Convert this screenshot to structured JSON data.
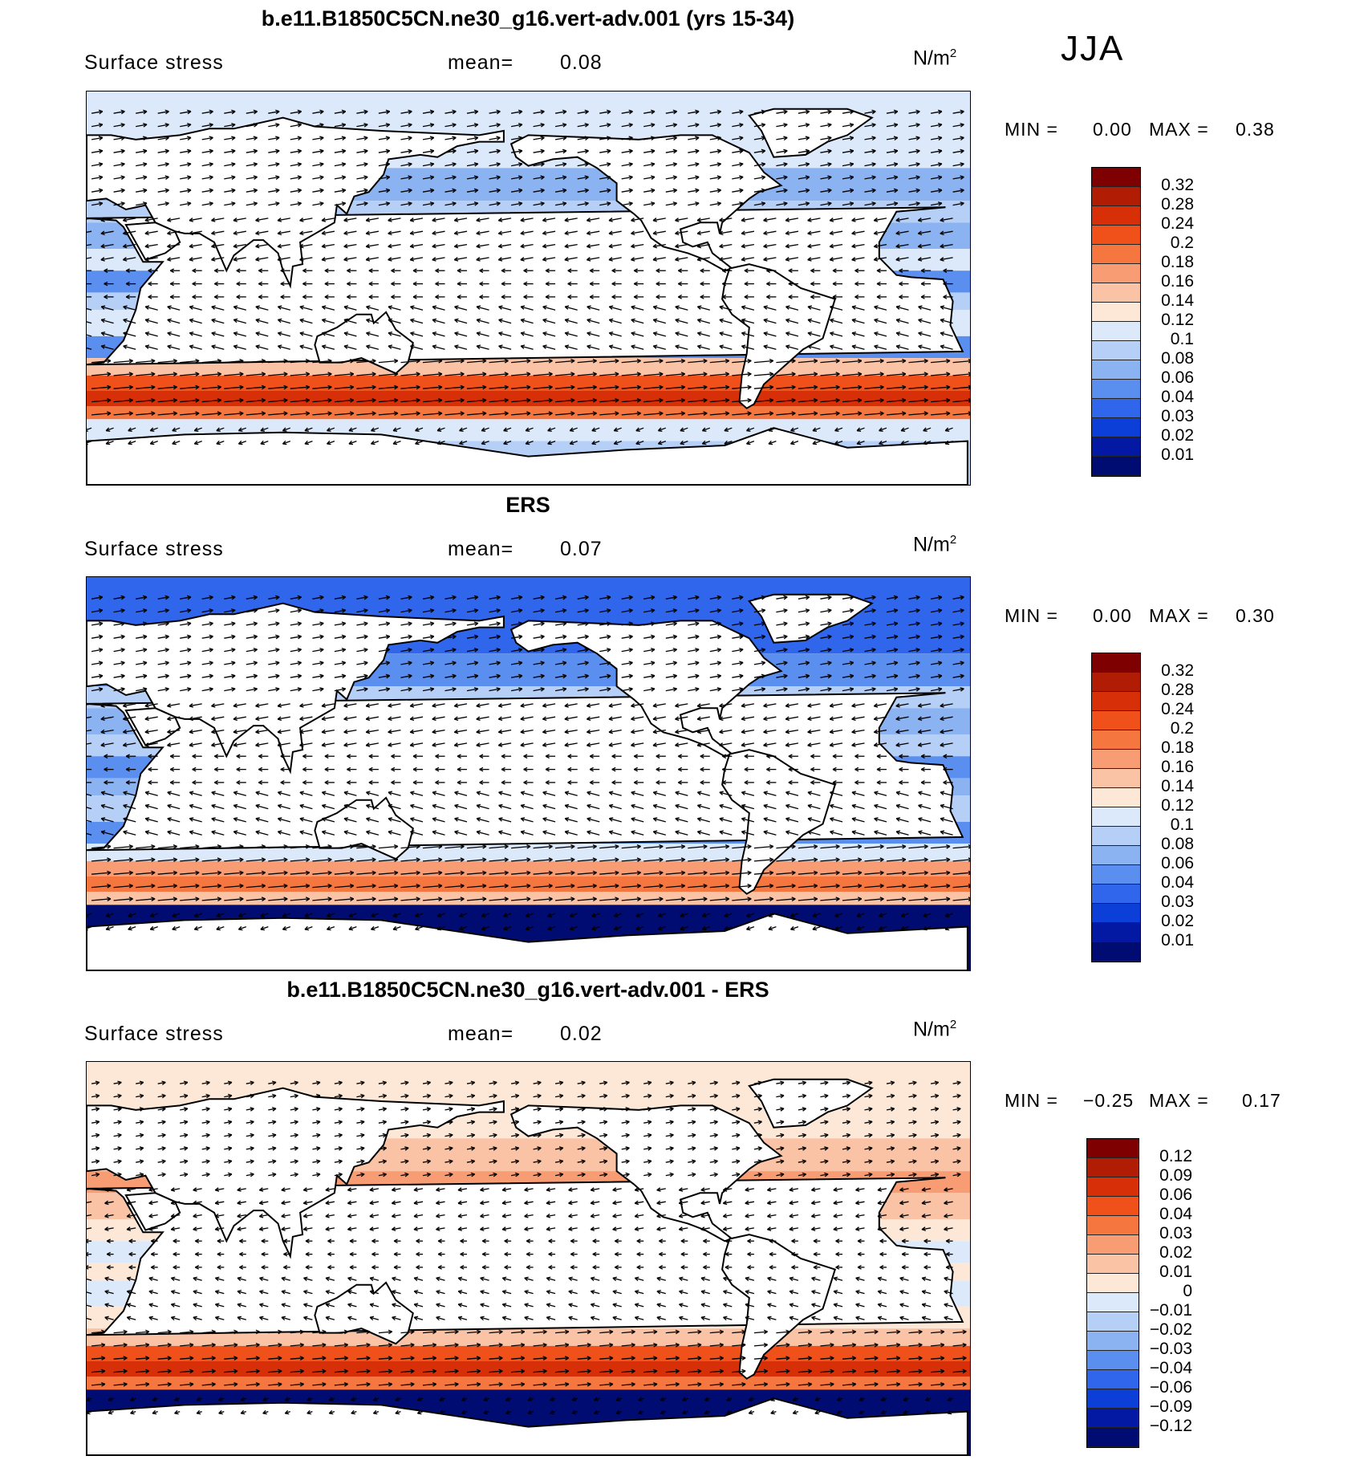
{
  "season": "JJA",
  "panels": [
    {
      "title": "b.e11.B1850C5CN.ne30_g16.vert-adv.001 (yrs 15-34)",
      "variable": "Surface stress",
      "mean_label": "mean=",
      "mean_value": "0.08",
      "units": "N/m",
      "units_exp": "2",
      "min_label": "MIN =",
      "min_value": "0.00",
      "max_label": "MAX =",
      "max_value": "0.38",
      "colorbar": [
        "0.32",
        "0.28",
        "0.24",
        "0.2",
        "0.18",
        "0.16",
        "0.14",
        "0.12",
        "0.1",
        "0.08",
        "0.06",
        "0.04",
        "0.03",
        "0.02",
        "0.01"
      ],
      "colors": [
        "#7f0000",
        "#b01d04",
        "#d73008",
        "#f0501a",
        "#f5773f",
        "#f89c73",
        "#fbc3a5",
        "#fde7d6",
        "#dce9fb",
        "#b5cff6",
        "#8bb2f1",
        "#5a8ff0",
        "#2f66ec",
        "#0c3fd8",
        "#0419a3",
        "#000c72"
      ]
    },
    {
      "title": "ERS",
      "variable": "Surface stress",
      "mean_label": "mean=",
      "mean_value": "0.07",
      "units": "N/m",
      "units_exp": "2",
      "min_label": "MIN =",
      "min_value": "0.00",
      "max_label": "MAX =",
      "max_value": "0.30",
      "colorbar": [
        "0.32",
        "0.28",
        "0.24",
        "0.2",
        "0.18",
        "0.16",
        "0.14",
        "0.12",
        "0.1",
        "0.08",
        "0.06",
        "0.04",
        "0.03",
        "0.02",
        "0.01"
      ],
      "colors": [
        "#7f0000",
        "#b01d04",
        "#d73008",
        "#f0501a",
        "#f5773f",
        "#f89c73",
        "#fbc3a5",
        "#fde7d6",
        "#dce9fb",
        "#b5cff6",
        "#8bb2f1",
        "#5a8ff0",
        "#2f66ec",
        "#0c3fd8",
        "#0419a3",
        "#000c72"
      ]
    },
    {
      "title": "b.e11.B1850C5CN.ne30_g16.vert-adv.001 - ERS",
      "variable": "Surface stress",
      "mean_label": "mean=",
      "mean_value": "0.02",
      "units": "N/m",
      "units_exp": "2",
      "min_label": "MIN =",
      "min_value": "−0.25",
      "max_label": "MAX =",
      "max_value": "0.17",
      "colorbar": [
        "0.12",
        "0.09",
        "0.06",
        "0.04",
        "0.03",
        "0.02",
        "0.01",
        "0",
        "−0.01",
        "−0.02",
        "−0.03",
        "−0.04",
        "−0.06",
        "−0.09",
        "−0.12"
      ],
      "colors": [
        "#7f0000",
        "#b01d04",
        "#d73008",
        "#f0501a",
        "#f5773f",
        "#f89c73",
        "#fbc3a5",
        "#fde7d6",
        "#dce9fb",
        "#b5cff6",
        "#8bb2f1",
        "#5a8ff0",
        "#2f66ec",
        "#0c3fd8",
        "#0419a3",
        "#000c72"
      ]
    }
  ]
}
